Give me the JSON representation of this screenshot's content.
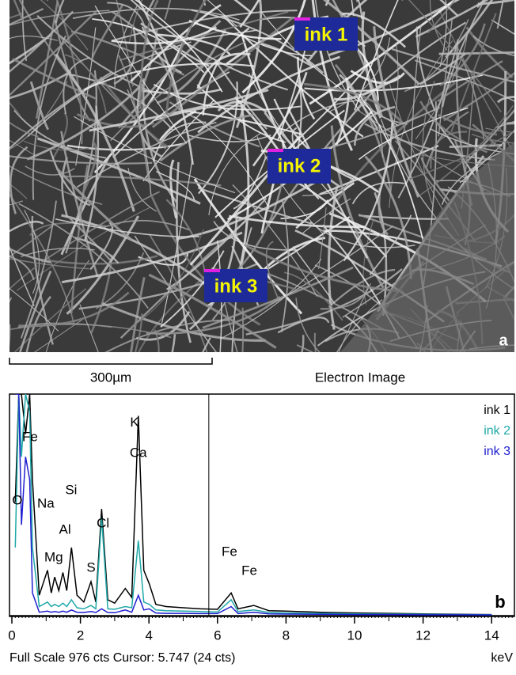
{
  "image": {
    "labels": [
      "ink 1",
      "ink 2",
      "ink 3"
    ],
    "panel": "a",
    "scale_bar": "300µm",
    "caption": "Electron Image"
  },
  "chart_data": {
    "type": "line",
    "panel": "b",
    "xlabel": "keV",
    "footer": "Full Scale 976 cts Cursor: 5.747  (24 cts)",
    "cursor": 5.747,
    "xlim": [
      0,
      14.9
    ],
    "xticks": [
      0,
      2,
      4,
      6,
      8,
      10,
      12,
      14
    ],
    "ylim": [
      0,
      976
    ],
    "legend": "top-right",
    "x": [
      0.1,
      0.2,
      0.28,
      0.4,
      0.52,
      0.6,
      0.8,
      1.04,
      1.15,
      1.25,
      1.37,
      1.49,
      1.6,
      1.74,
      1.9,
      2.1,
      2.31,
      2.45,
      2.62,
      2.8,
      3.0,
      3.31,
      3.5,
      3.69,
      3.85,
      4.01,
      4.2,
      4.5,
      5,
      5.5,
      6.0,
      6.4,
      6.6,
      7.06,
      7.5,
      8,
      9,
      10,
      11,
      12,
      13,
      14
    ],
    "series": [
      {
        "name": "ink 1",
        "color": "#000000",
        "values": [
          500,
          976,
          976,
          800,
          976,
          600,
          90,
          200,
          100,
          170,
          110,
          190,
          110,
          300,
          90,
          60,
          150,
          60,
          470,
          70,
          55,
          120,
          80,
          880,
          200,
          140,
          50,
          40,
          35,
          30,
          28,
          100,
          30,
          45,
          22,
          20,
          15,
          12,
          10,
          8,
          6,
          5
        ]
      },
      {
        "name": "ink 2",
        "color": "#20a8a8",
        "values": [
          300,
          976,
          700,
          976,
          900,
          300,
          40,
          60,
          40,
          50,
          40,
          55,
          40,
          70,
          35,
          30,
          45,
          30,
          430,
          30,
          28,
          40,
          35,
          330,
          60,
          50,
          25,
          22,
          20,
          18,
          16,
          70,
          18,
          25,
          14,
          12,
          10,
          8,
          7,
          6,
          5,
          4
        ]
      },
      {
        "name": "ink 3",
        "color": "#2020d0",
        "values": [
          976,
          976,
          400,
          700,
          600,
          100,
          15,
          20,
          15,
          18,
          15,
          20,
          15,
          25,
          15,
          14,
          18,
          14,
          30,
          14,
          13,
          25,
          15,
          90,
          25,
          30,
          12,
          10,
          10,
          9,
          9,
          40,
          9,
          15,
          8,
          7,
          6,
          5,
          5,
          4,
          4,
          3
        ]
      }
    ],
    "annotations": [
      {
        "text": "K",
        "x": 3.58,
        "y": 848
      },
      {
        "text": "Ca",
        "x": 3.69,
        "y": 715
      },
      {
        "text": "Fe",
        "x": 0.53,
        "y": 785
      },
      {
        "text": "Si",
        "x": 1.73,
        "y": 551
      },
      {
        "text": "Na",
        "x": 0.99,
        "y": 492
      },
      {
        "text": "Al",
        "x": 1.55,
        "y": 377
      },
      {
        "text": "Cl",
        "x": 2.66,
        "y": 405
      },
      {
        "text": "Mg",
        "x": 1.22,
        "y": 255
      },
      {
        "text": "S",
        "x": 2.31,
        "y": 209
      },
      {
        "text": "Fe",
        "x": 6.35,
        "y": 279
      },
      {
        "text": "Fe",
        "x": 6.93,
        "y": 195
      },
      {
        "text": "O",
        "x": 0.16,
        "y": 506
      }
    ]
  }
}
